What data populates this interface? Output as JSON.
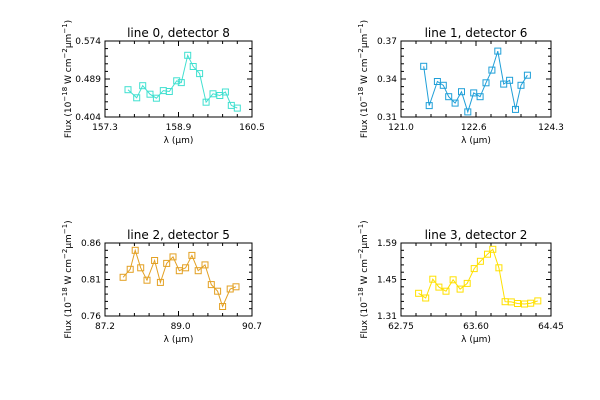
{
  "chart_data": [
    {
      "type": "line",
      "title": "line 0, detector 8",
      "xlabel": "λ (μm)",
      "ylabel_base": "Flux (10",
      "ylabel_parts": [
        "−18",
        " W cm",
        "−2",
        "μm",
        "−1",
        ")"
      ],
      "xlim": [
        157.3,
        160.5
      ],
      "ylim": [
        0.404,
        0.574
      ],
      "xticks": [
        157.3,
        158.9,
        160.5
      ],
      "xtick_labels": [
        "157.3",
        "158.9",
        "160.5"
      ],
      "yticks": [
        0.404,
        0.489,
        0.574
      ],
      "ytick_labels": [
        "0.404",
        "0.489",
        "0.574"
      ],
      "color": "#40e0d0",
      "x": [
        157.8,
        157.99,
        158.12,
        158.28,
        158.42,
        158.57,
        158.7,
        158.86,
        158.96,
        159.1,
        159.22,
        159.36,
        159.5,
        159.65,
        159.8,
        159.92,
        160.05,
        160.18
      ],
      "y": [
        0.465,
        0.447,
        0.474,
        0.455,
        0.446,
        0.463,
        0.461,
        0.485,
        0.481,
        0.542,
        0.517,
        0.501,
        0.437,
        0.456,
        0.452,
        0.46,
        0.43,
        0.424
      ]
    },
    {
      "type": "line",
      "title": "line 1, detector 6",
      "xlabel": "λ (μm)",
      "ylabel_base": "Flux (10",
      "ylabel_parts": [
        "−18",
        " W cm",
        "−2",
        "μm",
        "−1",
        ")"
      ],
      "xlim": [
        121.0,
        124.3
      ],
      "ylim": [
        0.31,
        0.37
      ],
      "xticks": [
        121.0,
        122.6,
        124.3
      ],
      "xtick_labels": [
        "121.0",
        "122.6",
        "124.3"
      ],
      "yticks": [
        0.31,
        0.34,
        0.37
      ],
      "ytick_labels": [
        "0.31",
        "0.34",
        "0.37"
      ],
      "color": "#1e9fd8",
      "x": [
        121.5,
        121.62,
        121.8,
        121.93,
        122.05,
        122.19,
        122.33,
        122.47,
        122.6,
        122.74,
        122.87,
        123.0,
        123.13,
        123.26,
        123.39,
        123.52,
        123.64,
        123.78
      ],
      "y": [
        0.35,
        0.319,
        0.338,
        0.335,
        0.326,
        0.321,
        0.33,
        0.314,
        0.329,
        0.326,
        0.337,
        0.347,
        0.362,
        0.336,
        0.339,
        0.316,
        0.335,
        0.343
      ]
    },
    {
      "type": "line",
      "title": "line 2, detector 5",
      "xlabel": "λ (μm)",
      "ylabel_base": "Flux (10",
      "ylabel_parts": [
        "−18",
        " W cm",
        "−2",
        "μm",
        "−1",
        ")"
      ],
      "xlim": [
        87.2,
        90.7
      ],
      "ylim": [
        0.76,
        0.86
      ],
      "xticks": [
        87.2,
        89.0,
        90.7
      ],
      "xtick_labels": [
        "87.2",
        "89.0",
        "90.7"
      ],
      "yticks": [
        0.76,
        0.81,
        0.86
      ],
      "ytick_labels": [
        "0.76",
        "0.81",
        "0.86"
      ],
      "color": "#e3a022",
      "x": [
        87.63,
        87.8,
        87.92,
        88.05,
        88.2,
        88.38,
        88.52,
        88.67,
        88.82,
        88.97,
        89.12,
        89.27,
        89.42,
        89.58,
        89.73,
        89.88,
        90.0,
        90.18,
        90.32
      ],
      "y": [
        0.813,
        0.824,
        0.85,
        0.826,
        0.809,
        0.836,
        0.806,
        0.832,
        0.841,
        0.822,
        0.826,
        0.843,
        0.822,
        0.83,
        0.803,
        0.794,
        0.773,
        0.797,
        0.8
      ]
    },
    {
      "type": "line",
      "title": "line 3, detector 2",
      "xlabel": "λ (μm)",
      "ylabel_base": "Flux (10",
      "ylabel_parts": [
        "−18",
        " W cm",
        "−2",
        "μm",
        "−1",
        ")"
      ],
      "xlim": [
        62.75,
        64.45
      ],
      "ylim": [
        1.31,
        1.59
      ],
      "xticks": [
        62.75,
        63.6,
        64.45
      ],
      "xtick_labels": [
        "62.75",
        "63.60",
        "64.45"
      ],
      "yticks": [
        1.31,
        1.45,
        1.59
      ],
      "ytick_labels": [
        "1.31",
        "1.45",
        "1.59"
      ],
      "color": "#ffe000",
      "x": [
        62.95,
        63.03,
        63.11,
        63.18,
        63.26,
        63.34,
        63.42,
        63.5,
        63.58,
        63.65,
        63.73,
        63.79,
        63.86,
        63.93,
        64.0,
        64.07,
        64.15,
        64.22,
        64.3
      ],
      "y": [
        1.397,
        1.379,
        1.451,
        1.421,
        1.405,
        1.449,
        1.413,
        1.435,
        1.492,
        1.52,
        1.547,
        1.566,
        1.495,
        1.365,
        1.364,
        1.358,
        1.356,
        1.359,
        1.368
      ]
    }
  ]
}
